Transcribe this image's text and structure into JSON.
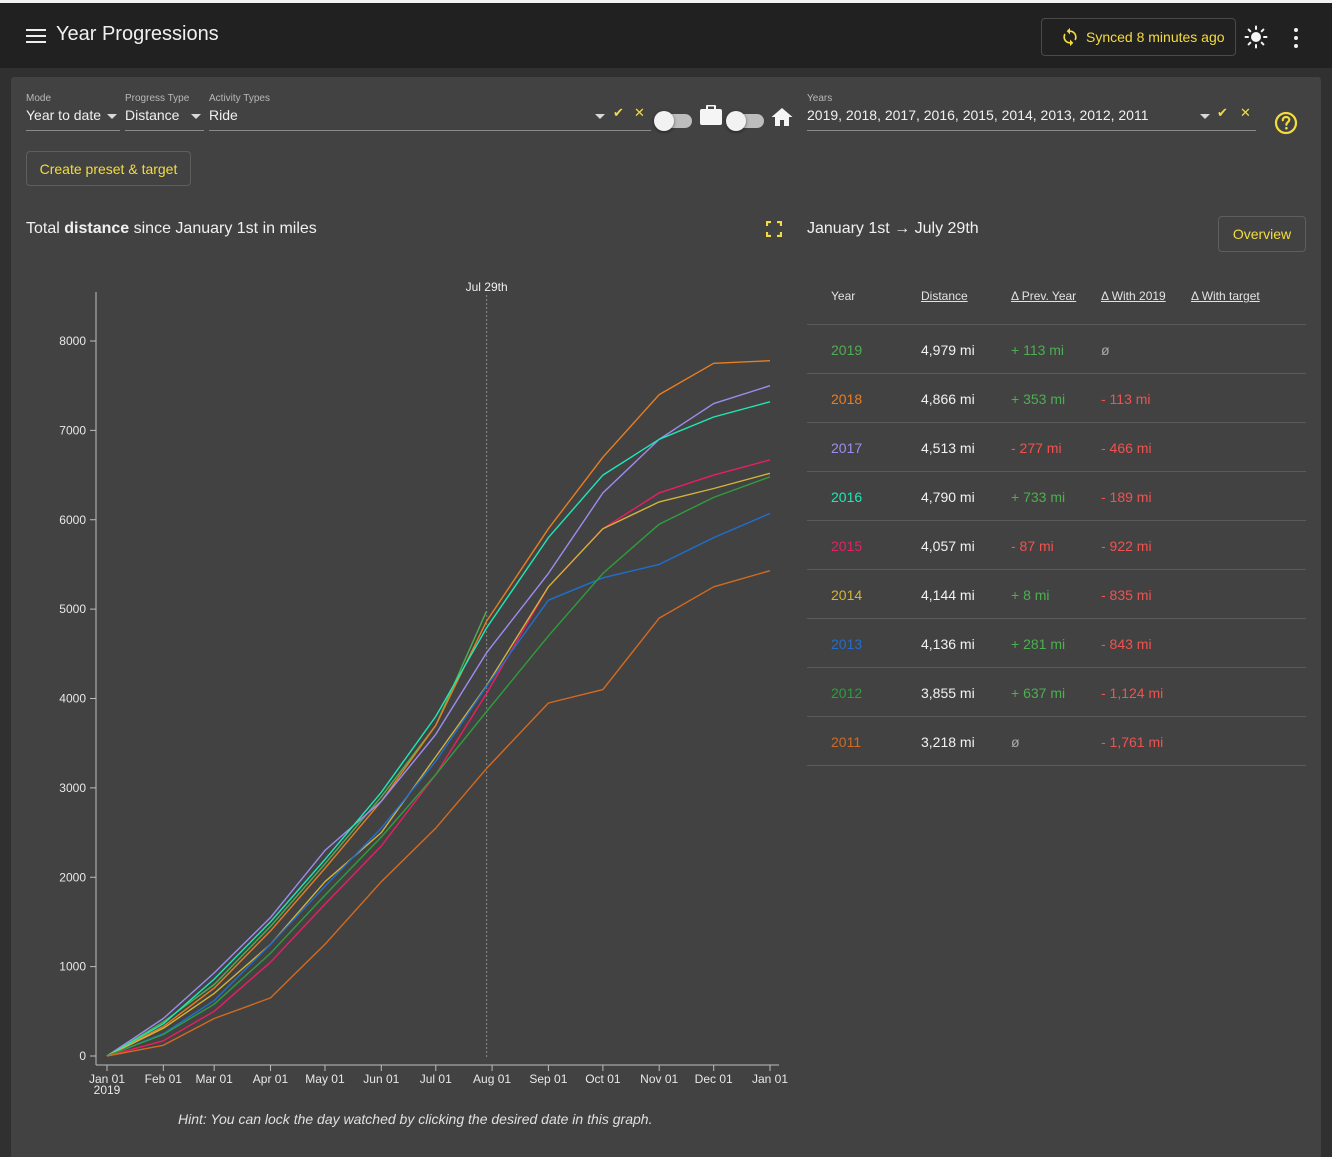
{
  "app": {
    "title": "Year Progressions",
    "sync_label": "Synced 8 minutes ago"
  },
  "filters": {
    "mode_label": "Mode",
    "mode_value": "Year to date",
    "progress_type_label": "Progress Type",
    "progress_type_value": "Distance",
    "activity_types_label": "Activity Types",
    "activity_types_value": "Ride",
    "years_label": "Years",
    "years_value": "2019, 2018, 2017, 2016, 2015, 2014, 2013, 2012, 2011"
  },
  "icons": {
    "menu": "menu-icon",
    "sync": "sync-icon",
    "theme": "brightness-icon",
    "more": "more-vert-icon",
    "select_all": "double-check-icon",
    "clear": "close-icon",
    "commute": "briefcase-icon",
    "home": "home-icon",
    "help": "help-circle-icon",
    "fullscreen": "fullscreen-icon"
  },
  "toggles": {
    "commute_on": false,
    "home_on": false
  },
  "preset_button": "Create preset & target",
  "chart": {
    "title_pre": "Total ",
    "title_bold": "distance",
    "title_post": " since January 1st in miles",
    "marker_label": "Jul 29th",
    "hint": "Hint: You can lock the day watched by clicking the desired date in this graph."
  },
  "chart_data": {
    "type": "line",
    "title": "Total distance since January 1st in miles",
    "xlabel": "",
    "ylabel": "",
    "x_ticks": [
      "Jan 01",
      "Feb 01",
      "Mar 01",
      "Apr 01",
      "May 01",
      "Jun 01",
      "Jul 01",
      "Aug 01",
      "Sep 01",
      "Oct 01",
      "Nov 01",
      "Dec 01",
      "Jan 01"
    ],
    "x_tick_sublabel": "2019",
    "y_ticks": [
      0,
      1000,
      2000,
      3000,
      4000,
      5000,
      6000,
      7000,
      8000
    ],
    "ylim": [
      0,
      8400
    ],
    "xlim_days": [
      0,
      365
    ],
    "marker_day": 209,
    "grid": false,
    "series": [
      {
        "name": "2019",
        "color": "#4caf50",
        "points": [
          [
            0,
            0
          ],
          [
            31,
            380
          ],
          [
            59,
            800
          ],
          [
            90,
            1450
          ],
          [
            120,
            2150
          ],
          [
            151,
            2900
          ],
          [
            181,
            3700
          ],
          [
            209,
            4979
          ]
        ]
      },
      {
        "name": "2018",
        "color": "#e67e22",
        "points": [
          [
            0,
            0
          ],
          [
            31,
            330
          ],
          [
            59,
            760
          ],
          [
            90,
            1400
          ],
          [
            120,
            2100
          ],
          [
            151,
            2850
          ],
          [
            181,
            3700
          ],
          [
            209,
            4866
          ],
          [
            243,
            5900
          ],
          [
            273,
            6700
          ],
          [
            304,
            7400
          ],
          [
            334,
            7750
          ],
          [
            365,
            7780
          ]
        ]
      },
      {
        "name": "2017",
        "color": "#9c8df0",
        "points": [
          [
            0,
            0
          ],
          [
            31,
            420
          ],
          [
            59,
            930
          ],
          [
            90,
            1550
          ],
          [
            120,
            2300
          ],
          [
            151,
            2850
          ],
          [
            181,
            3600
          ],
          [
            209,
            4513
          ],
          [
            243,
            5400
          ],
          [
            273,
            6300
          ],
          [
            304,
            6900
          ],
          [
            334,
            7300
          ],
          [
            365,
            7500
          ]
        ]
      },
      {
        "name": "2016",
        "color": "#1de9b6",
        "points": [
          [
            0,
            0
          ],
          [
            31,
            360
          ],
          [
            59,
            860
          ],
          [
            90,
            1500
          ],
          [
            120,
            2200
          ],
          [
            151,
            2950
          ],
          [
            181,
            3800
          ],
          [
            209,
            4790
          ],
          [
            243,
            5800
          ],
          [
            273,
            6500
          ],
          [
            304,
            6900
          ],
          [
            334,
            7150
          ],
          [
            365,
            7320
          ]
        ]
      },
      {
        "name": "2015",
        "color": "#e91e63",
        "points": [
          [
            0,
            0
          ],
          [
            31,
            170
          ],
          [
            59,
            500
          ],
          [
            90,
            1050
          ],
          [
            120,
            1700
          ],
          [
            151,
            2350
          ],
          [
            181,
            3150
          ],
          [
            209,
            4057
          ],
          [
            243,
            5250
          ],
          [
            273,
            5900
          ],
          [
            304,
            6300
          ],
          [
            334,
            6500
          ],
          [
            365,
            6670
          ]
        ]
      },
      {
        "name": "2014",
        "color": "#d4b33a",
        "points": [
          [
            0,
            0
          ],
          [
            31,
            310
          ],
          [
            59,
            700
          ],
          [
            90,
            1250
          ],
          [
            120,
            1950
          ],
          [
            151,
            2500
          ],
          [
            181,
            3350
          ],
          [
            209,
            4144
          ],
          [
            243,
            5250
          ],
          [
            273,
            5900
          ],
          [
            304,
            6200
          ],
          [
            334,
            6350
          ],
          [
            365,
            6520
          ]
        ]
      },
      {
        "name": "2013",
        "color": "#1e6fd0",
        "points": [
          [
            0,
            0
          ],
          [
            31,
            250
          ],
          [
            59,
            620
          ],
          [
            90,
            1250
          ],
          [
            120,
            1900
          ],
          [
            151,
            2550
          ],
          [
            181,
            3300
          ],
          [
            209,
            4136
          ],
          [
            243,
            5100
          ],
          [
            273,
            5350
          ],
          [
            304,
            5500
          ],
          [
            334,
            5800
          ],
          [
            365,
            6070
          ]
        ]
      },
      {
        "name": "2012",
        "color": "#2e9e3c",
        "points": [
          [
            0,
            0
          ],
          [
            31,
            240
          ],
          [
            59,
            580
          ],
          [
            90,
            1150
          ],
          [
            120,
            1800
          ],
          [
            151,
            2450
          ],
          [
            181,
            3150
          ],
          [
            209,
            3855
          ],
          [
            243,
            4700
          ],
          [
            273,
            5400
          ],
          [
            304,
            5950
          ],
          [
            334,
            6250
          ],
          [
            365,
            6480
          ]
        ]
      },
      {
        "name": "2011",
        "color": "#d46a1f",
        "points": [
          [
            0,
            0
          ],
          [
            31,
            120
          ],
          [
            59,
            420
          ],
          [
            90,
            650
          ],
          [
            120,
            1250
          ],
          [
            151,
            1950
          ],
          [
            181,
            2550
          ],
          [
            209,
            3218
          ],
          [
            243,
            3950
          ],
          [
            273,
            4100
          ],
          [
            304,
            4900
          ],
          [
            334,
            5250
          ],
          [
            365,
            5430
          ]
        ]
      }
    ]
  },
  "summary": {
    "period_from": "January 1st",
    "arrow": "→",
    "period_to": "July 29th",
    "overview_button": "Overview",
    "headers": {
      "year": "Year",
      "distance": "Distance",
      "prev_year": "Δ Prev. Year",
      "with_2019": "Δ With 2019",
      "with_target": "Δ With target"
    },
    "rows": [
      {
        "year": "2019",
        "color": "#4caf50",
        "distance": "4,979 mi",
        "prev": "+ 113 mi",
        "prev_class": "pos",
        "w19": "ø",
        "w19_class": "neutral"
      },
      {
        "year": "2018",
        "color": "#e67e22",
        "distance": "4,866 mi",
        "prev": "+ 353 mi",
        "prev_class": "pos",
        "w19": "- 113 mi",
        "w19_class": "neg"
      },
      {
        "year": "2017",
        "color": "#9c8df0",
        "distance": "4,513 mi",
        "prev": "- 277 mi",
        "prev_class": "neg",
        "w19": "- 466 mi",
        "w19_class": "neg"
      },
      {
        "year": "2016",
        "color": "#1de9b6",
        "distance": "4,790 mi",
        "prev": "+ 733 mi",
        "prev_class": "pos",
        "w19": "- 189 mi",
        "w19_class": "neg"
      },
      {
        "year": "2015",
        "color": "#e91e63",
        "distance": "4,057 mi",
        "prev": "- 87 mi",
        "prev_class": "neg",
        "w19": "- 922 mi",
        "w19_class": "neg"
      },
      {
        "year": "2014",
        "color": "#d4b33a",
        "distance": "4,144 mi",
        "prev": "+ 8 mi",
        "prev_class": "pos",
        "w19": "- 835 mi",
        "w19_class": "neg"
      },
      {
        "year": "2013",
        "color": "#1e6fd0",
        "distance": "4,136 mi",
        "prev": "+ 281 mi",
        "prev_class": "pos",
        "w19": "- 843 mi",
        "w19_class": "neg"
      },
      {
        "year": "2012",
        "color": "#2e9e3c",
        "distance": "3,855 mi",
        "prev": "+ 637 mi",
        "prev_class": "pos",
        "w19": "- 1,124 mi",
        "w19_class": "neg"
      },
      {
        "year": "2011",
        "color": "#d46a1f",
        "distance": "3,218 mi",
        "prev": "ø",
        "prev_class": "neutral",
        "w19": "- 1,761 mi",
        "w19_class": "neg"
      }
    ]
  }
}
